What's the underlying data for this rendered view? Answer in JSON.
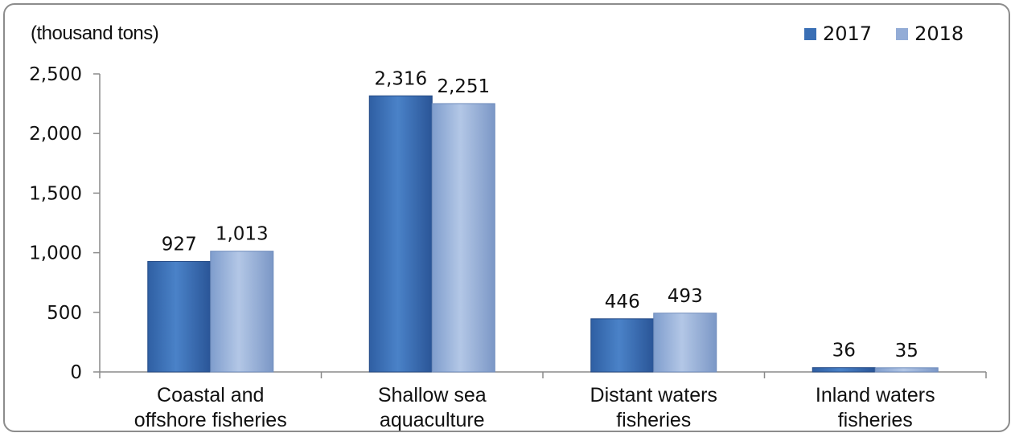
{
  "chart_data": {
    "type": "bar",
    "unit_label": "(thousand tons)",
    "categories": [
      [
        "Coastal and",
        "offshore fisheries"
      ],
      [
        "Shallow sea",
        "aquaculture"
      ],
      [
        "Distant waters",
        "fisheries"
      ],
      [
        "Inland waters",
        "fisheries"
      ]
    ],
    "series": [
      {
        "name": "2017",
        "values": [
          927,
          2316,
          446,
          36
        ],
        "labels": [
          "927",
          "2,316",
          "446",
          "36"
        ],
        "color": "#3a6fb5"
      },
      {
        "name": "2018",
        "values": [
          1013,
          2251,
          493,
          35
        ],
        "labels": [
          "1,013",
          "2,251",
          "493",
          "35"
        ],
        "color": "#93acd6"
      }
    ],
    "ylim": [
      0,
      2500
    ],
    "yticks": [
      0,
      500,
      1000,
      1500,
      2000,
      2500
    ],
    "ytick_labels": [
      "0",
      "500",
      "1,000",
      "1,500",
      "2,000",
      "2,500"
    ],
    "legend_position": "top-right",
    "grid": false
  }
}
